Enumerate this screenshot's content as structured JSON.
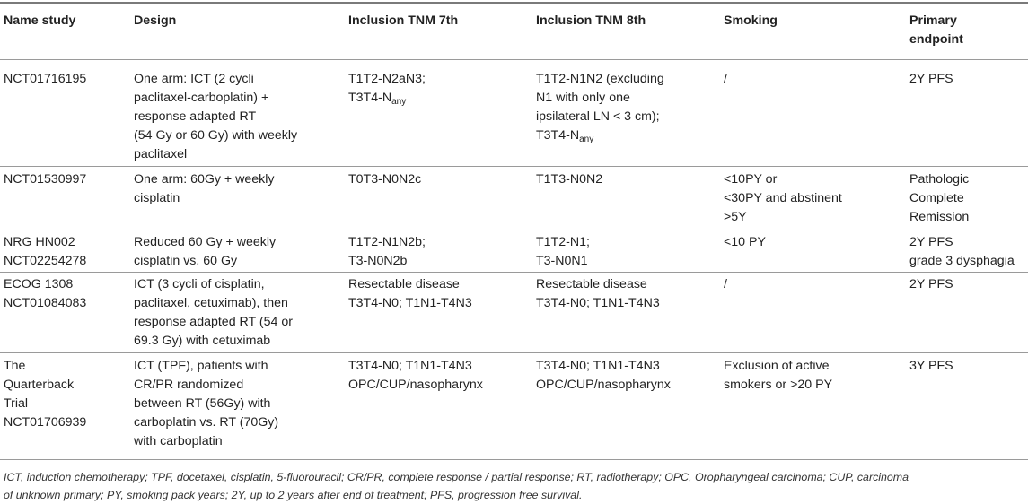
{
  "headers": [
    "Name study",
    "Design",
    "Inclusion TNM 7th",
    "Inclusion TNM 8th",
    "Smoking",
    "Primary endpoint"
  ],
  "rows": [
    {
      "name": [
        "NCT01716195"
      ],
      "design": [
        "One arm: ICT (2 cycli",
        "paclitaxel-carboplatin) +",
        "response adapted RT",
        "(54 Gy or 60 Gy) with weekly",
        "paclitaxel"
      ],
      "tnm7": [
        "T1T2-N2aN3;",
        "T3T4-N"
      ],
      "tnm7_sub": "any",
      "tnm8": [
        "T1T2-N1N2 (excluding",
        "N1 with only one",
        "ipsilateral LN < 3 cm);",
        "T3T4-N"
      ],
      "tnm8_sub": "any",
      "smoking": [
        "/"
      ],
      "endpoint": [
        "2Y PFS"
      ]
    },
    {
      "name": [
        "NCT01530997"
      ],
      "design": [
        "One arm: 60Gy + weekly",
        "cisplatin"
      ],
      "tnm7": [
        "T0T3-N0N2c"
      ],
      "tnm8": [
        "T1T3-N0N2"
      ],
      "smoking": [
        "<10PY or",
        "<30PY and abstinent",
        ">5Y"
      ],
      "endpoint": [
        "Pathologic",
        "Complete",
        "Remission"
      ]
    },
    {
      "name": [
        "NRG HN002",
        "NCT02254278"
      ],
      "design": [
        "Reduced 60 Gy + weekly",
        "cisplatin vs. 60 Gy"
      ],
      "tnm7": [
        "T1T2-N1N2b;",
        "T3-N0N2b"
      ],
      "tnm8": [
        "T1T2-N1;",
        "T3-N0N1"
      ],
      "smoking": [
        "<10 PY"
      ],
      "endpoint": [
        "2Y PFS",
        "grade 3 dysphagia"
      ]
    },
    {
      "name": [
        "ECOG 1308",
        "NCT01084083"
      ],
      "design": [
        "ICT (3 cycli of cisplatin,",
        "paclitaxel, cetuximab), then",
        "response adapted RT (54 or",
        "69.3 Gy) with cetuximab"
      ],
      "tnm7": [
        "Resectable disease",
        "T3T4-N0; T1N1-T4N3"
      ],
      "tnm8": [
        "Resectable disease",
        "T3T4-N0; T1N1-T4N3"
      ],
      "smoking": [
        "/"
      ],
      "endpoint": [
        "2Y PFS"
      ]
    },
    {
      "name": [
        "The",
        "Quarterback",
        "Trial",
        "NCT01706939"
      ],
      "design": [
        "ICT (TPF), patients with",
        "CR/PR randomized",
        "between RT (56Gy) with",
        "carboplatin vs. RT (70Gy)",
        "with carboplatin"
      ],
      "tnm7": [
        "T3T4-N0; T1N1-T4N3",
        "OPC/CUP/nasopharynx"
      ],
      "tnm8": [
        "T3T4-N0; T1N1-T4N3",
        "OPC/CUP/nasopharynx"
      ],
      "smoking": [
        "Exclusion of active",
        "smokers or >20 PY"
      ],
      "endpoint": [
        "3Y PFS"
      ]
    }
  ],
  "footnote": [
    "ICT, induction chemotherapy; TPF, docetaxel, cisplatin, 5-fluorouracil; CR/PR, complete response / partial response; RT, radiotherapy; OPC, Oropharyngeal carcinoma; CUP, carcinoma",
    "of unknown primary; PY, smoking pack years; 2Y, up to 2 years after end of treatment; PFS, progression free survival."
  ]
}
